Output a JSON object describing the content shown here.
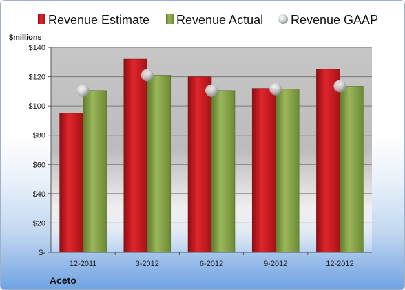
{
  "chart_data": {
    "type": "bar",
    "company": "Aceto",
    "ylabel": "$millions",
    "ylim": [
      0,
      140
    ],
    "y_ticks": [
      0,
      20,
      40,
      60,
      80,
      100,
      120,
      140
    ],
    "y_tick_labels": [
      "$-",
      "$20",
      "$40",
      "$60",
      "$80",
      "$100",
      "$120",
      "$140"
    ],
    "categories": [
      "12-2011",
      "3-2012",
      "6-2012",
      "9-2012",
      "12-2012"
    ],
    "series": [
      {
        "name": "Revenue Estimate",
        "type": "bar",
        "values": [
          95,
          132,
          120,
          112,
          125
        ]
      },
      {
        "name": "Revenue Actual",
        "type": "bar",
        "values": [
          110.5,
          121,
          110.5,
          111.5,
          113.5
        ]
      },
      {
        "name": "Revenue GAAP",
        "type": "marker",
        "values": [
          110.5,
          121,
          110.5,
          111.5,
          113.5
        ]
      }
    ],
    "grid": true,
    "legend_position": "top",
    "colors": {
      "estimate": "#c8161d",
      "actual": "#8aa54a",
      "gaap": "#c7c9cc",
      "plot_background": "#c8c8c8"
    }
  }
}
